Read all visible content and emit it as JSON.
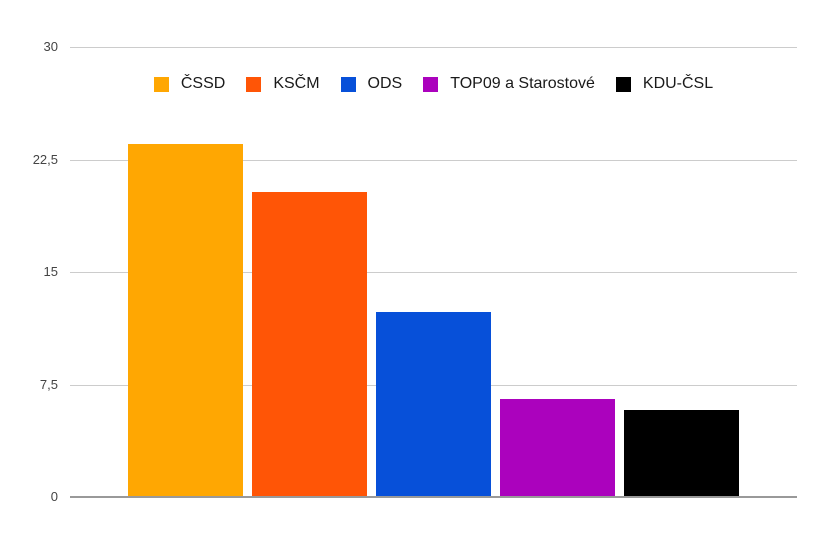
{
  "chart_data": {
    "type": "bar",
    "title": "",
    "xlabel": "",
    "ylabel": "",
    "categories": [
      "ČSSD",
      "KSČM",
      "ODS",
      "TOP09 a Starostové",
      "KDU-ČSL"
    ],
    "series": [
      {
        "name": "ČSSD",
        "value": 23.5,
        "color": "#FFA702"
      },
      {
        "name": "KSČM",
        "value": 20.3,
        "color": "#FF5506"
      },
      {
        "name": "ODS",
        "value": 12.3,
        "color": "#0750D9"
      },
      {
        "name": "TOP09 a Starostové",
        "value": 6.5,
        "color": "#AB02BD"
      },
      {
        "name": "KDU-ČSL",
        "value": 5.8,
        "color": "#000000"
      }
    ],
    "ylim": [
      0,
      30
    ],
    "y_ticks": [
      {
        "value": 0,
        "label": "0"
      },
      {
        "value": 7.5,
        "label": "7,5"
      },
      {
        "value": 15,
        "label": "15"
      },
      {
        "value": 22.5,
        "label": "22,5"
      },
      {
        "value": 30,
        "label": "30"
      }
    ],
    "grid": true,
    "legend_position": "top"
  },
  "colors": {
    "background": "#ffffff",
    "gridline": "#cccccc",
    "baseline": "#999999",
    "tick_label": "#444444",
    "legend_label": "#1a1a1a"
  }
}
